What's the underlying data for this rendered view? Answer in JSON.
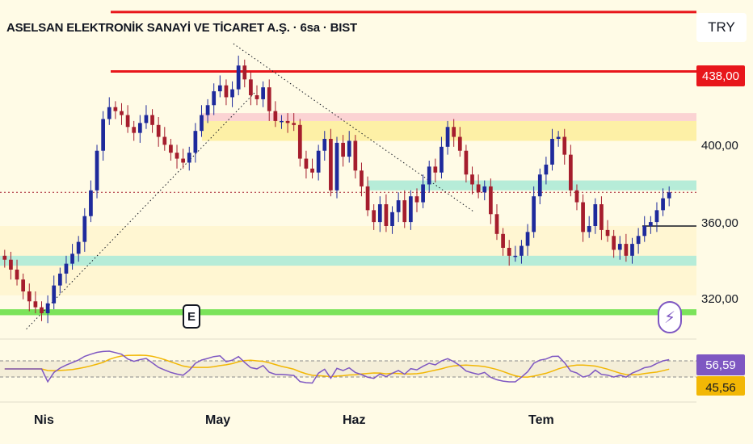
{
  "header": {
    "title": "ASELSAN ELEKTRONİK SANAYİ VE TİCARET A.Ş. · 6sa · BIST",
    "currency": "TRY"
  },
  "markers": {
    "earnings_label": "E",
    "bolt_icon": "lightning-icon"
  },
  "colors": {
    "up": "#1e2a9c",
    "down": "#a51d2d",
    "resistance": "#e8161b",
    "support_green": "#7be35a",
    "zone_teal": "#b6ecd8",
    "zone_yellow": "#fdf0a6",
    "zone_pink": "#fbd3d3",
    "rsi_line": "#7e57c2",
    "rsi_ma": "#f2b705",
    "background": "#fffbe6"
  },
  "chart_data": [
    {
      "type": "candlestick",
      "x_ticks": [
        "Nis",
        "May",
        "Haz",
        "Tem"
      ],
      "y_ticks": [
        "320,00",
        "360,00",
        "400,00"
      ],
      "ylim": [
        305,
        470
      ],
      "price_tags": [
        {
          "label": "438,00",
          "value": 438,
          "color": "#e8161b"
        }
      ],
      "horizontal_lines": [
        {
          "value": 468,
          "color": "#e8161b"
        },
        {
          "value": 438,
          "color": "#e8161b"
        },
        {
          "value": 360,
          "color": "#131722"
        }
      ],
      "zones": [
        {
          "from": 403,
          "to": 413,
          "color": "#fdf0a6"
        },
        {
          "from": 413,
          "to": 417,
          "color": "#fbd3d3"
        },
        {
          "from": 378,
          "to": 383,
          "color": "#b6ecd8"
        },
        {
          "from": 340,
          "to": 345,
          "color": "#b6ecd8"
        },
        {
          "from": 315,
          "to": 318,
          "color": "#7be35a"
        }
      ],
      "trendlines": [
        {
          "from_x": 0.035,
          "from_y": 308,
          "to_x": 0.34,
          "to_y": 428
        },
        {
          "from_x": 0.31,
          "from_y": 452,
          "to_x": 0.63,
          "to_y": 367
        }
      ],
      "close_series": [
        343,
        338,
        333,
        327,
        322,
        319,
        316,
        321,
        330,
        336,
        341,
        346,
        352,
        365,
        378,
        398,
        414,
        420,
        418,
        416,
        410,
        407,
        412,
        416,
        411,
        405,
        401,
        397,
        394,
        392,
        397,
        408,
        416,
        421,
        428,
        431,
        425,
        429,
        441,
        434,
        426,
        424,
        430,
        418,
        413,
        413,
        412,
        411,
        394,
        389,
        387,
        398,
        404,
        378,
        402,
        395,
        403,
        388,
        380,
        368,
        362,
        371,
        360,
        367,
        373,
        362,
        375,
        372,
        381,
        390,
        387,
        400,
        410,
        405,
        398,
        386,
        381,
        377,
        380,
        366,
        356,
        349,
        345,
        345,
        350,
        357,
        375,
        386,
        391,
        404,
        405,
        396,
        378,
        372,
        357,
        360,
        371,
        358,
        355,
        348,
        351,
        345,
        351,
        355,
        360,
        362,
        368,
        374,
        377
      ],
      "rsi": {
        "value_label": "56,59",
        "ma_label": "45,56",
        "ylim": [
          0,
          100
        ],
        "levels": [
          70,
          30
        ],
        "value": 56.59,
        "ma": 45.56
      }
    }
  ]
}
